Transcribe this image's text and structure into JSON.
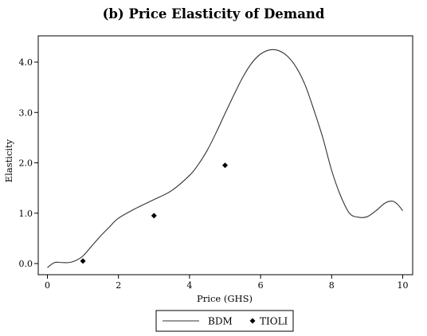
{
  "chart_data": {
    "type": "line",
    "title": "(b) Price Elasticity of Demand",
    "xlabel": "Price (GHS)",
    "ylabel": "Elasticity",
    "xlim": [
      0,
      10
    ],
    "ylim": [
      -0.1,
      4.5
    ],
    "x_ticks": [
      0,
      2,
      4,
      6,
      8,
      10
    ],
    "x_tick_labels": [
      "0",
      "2",
      "4",
      "6",
      "8",
      "10"
    ],
    "y_ticks": [
      0,
      1,
      2,
      3,
      4
    ],
    "y_tick_labels": [
      "0.0",
      "1.0",
      "2.0",
      "3.0",
      "4.0"
    ],
    "grid": false,
    "legend_position": "bottom",
    "series": [
      {
        "name": "BDM",
        "kind": "line",
        "color": "#333333",
        "x": [
          0.0,
          0.2,
          0.4,
          0.6,
          0.8,
          1.0,
          1.25,
          1.5,
          1.75,
          2.0,
          2.5,
          3.0,
          3.5,
          4.0,
          4.25,
          4.5,
          4.75,
          5.0,
          5.25,
          5.5,
          5.75,
          6.0,
          6.25,
          6.5,
          6.75,
          7.0,
          7.25,
          7.5,
          7.75,
          8.0,
          8.25,
          8.5,
          8.75,
          9.0,
          9.25,
          9.5,
          9.7,
          9.85,
          10.0
        ],
        "y": [
          -0.08,
          0.02,
          0.02,
          0.02,
          0.06,
          0.15,
          0.35,
          0.55,
          0.73,
          0.9,
          1.1,
          1.27,
          1.45,
          1.75,
          1.97,
          2.25,
          2.6,
          2.98,
          3.35,
          3.7,
          3.98,
          4.16,
          4.24,
          4.23,
          4.12,
          3.9,
          3.55,
          3.05,
          2.5,
          1.85,
          1.35,
          1.0,
          0.92,
          0.93,
          1.05,
          1.2,
          1.24,
          1.18,
          1.05
        ]
      },
      {
        "name": "TIOLI",
        "kind": "scatter",
        "marker": "diamond",
        "color": "#000000",
        "x": [
          1,
          3,
          5
        ],
        "y": [
          0.05,
          0.95,
          1.95
        ]
      }
    ]
  }
}
